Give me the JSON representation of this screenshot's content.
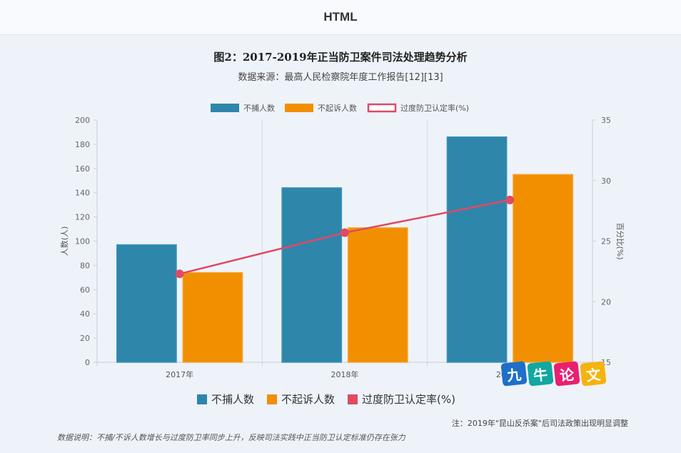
{
  "header": {
    "title": "HTML"
  },
  "chart_data": {
    "type": "bar",
    "title": "图2：2017-2019年正当防卫案件司法处理趋势分析",
    "subtitle": "数据来源：最高人民检察院年度工作报告[12][13]",
    "categories": [
      "2017年",
      "2018年",
      "2019年"
    ],
    "series": [
      {
        "name": "不捕人数",
        "type": "bar",
        "axis": "left",
        "color": "#2e86ab",
        "values": [
          97,
          144,
          186
        ]
      },
      {
        "name": "不起诉人数",
        "type": "bar",
        "axis": "left",
        "color": "#f18f01",
        "values": [
          74,
          111,
          155
        ]
      },
      {
        "name": "过度防卫认定率(%)",
        "type": "line",
        "axis": "right",
        "color": "#e04a64",
        "values": [
          22.3,
          25.7,
          28.4
        ]
      }
    ],
    "ylabel": "人数(人)",
    "ylabel_right": "百分比(%)",
    "ylim": [
      0,
      200
    ],
    "yticks": [
      0,
      20,
      40,
      60,
      80,
      100,
      120,
      140,
      160,
      180,
      200
    ],
    "ylim_right": [
      15,
      35
    ],
    "yticks_right": [
      15,
      20,
      25,
      30,
      35
    ],
    "grid": "vertical",
    "legend": "top-center"
  },
  "bottom_legend": [
    "不捕人数",
    "不起诉人数",
    "过度防卫认定率(%)"
  ],
  "watermark": {
    "chars": [
      "九",
      "牛",
      "论",
      "文"
    ],
    "colors": [
      "#1e6fc8",
      "#12a7a0",
      "#e8206f",
      "#f5b30f"
    ]
  },
  "note": "注：2019年\"昆山反杀案\"后司法政策出现明显调整",
  "description": "数据说明：不捕/不诉人数增长与过度防卫率同步上升，反映司法实践中正当防卫认定标准仍存在张力"
}
